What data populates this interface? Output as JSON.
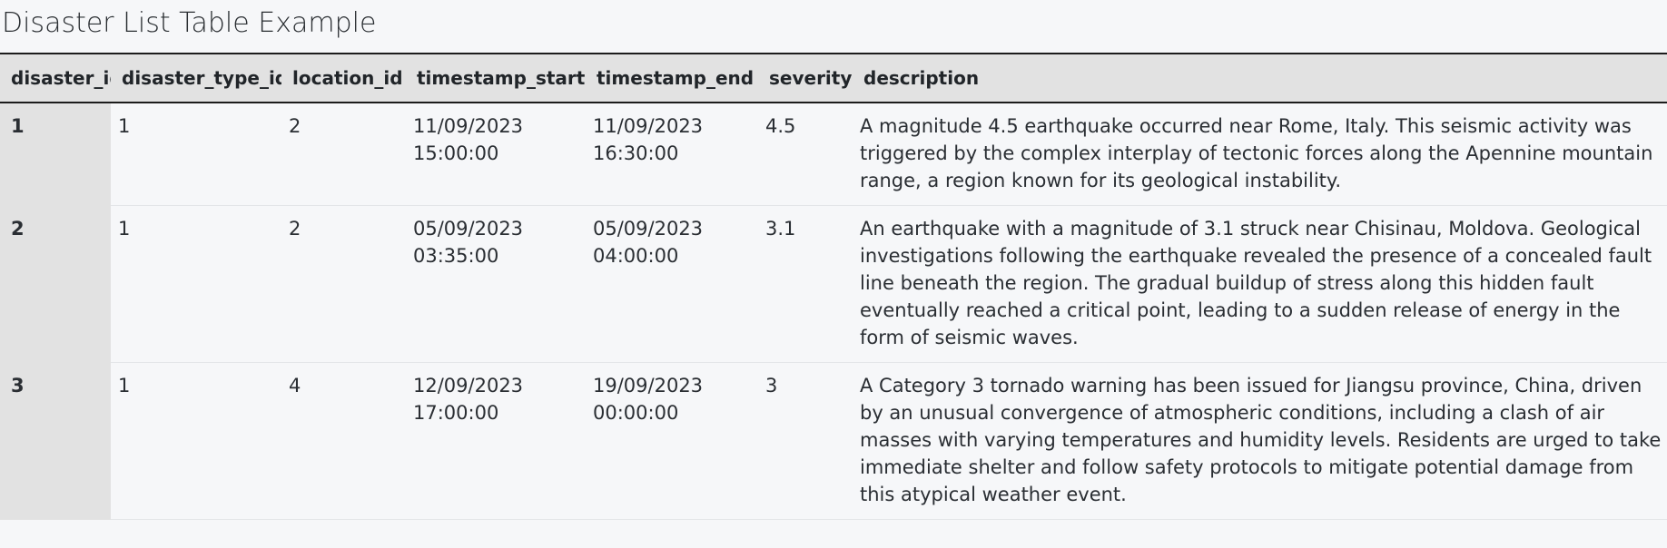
{
  "title": "Disaster List Table Example",
  "table": {
    "columns": [
      "disaster_id",
      "disaster_type_id",
      "location_id",
      "timestamp_start",
      "timestamp_end",
      "severity",
      "description"
    ],
    "rows": [
      {
        "disaster_id": "1",
        "disaster_type_id": "1",
        "location_id": "2",
        "timestamp_start": "11/09/2023 15:00:00",
        "timestamp_end": "11/09/2023 16:30:00",
        "severity": "4.5",
        "description": "A magnitude 4.5 earthquake occurred near Rome, Italy. This seismic activity was triggered by the complex interplay of tectonic forces along the Apennine mountain range, a region known for its geological instability."
      },
      {
        "disaster_id": "2",
        "disaster_type_id": "1",
        "location_id": "2",
        "timestamp_start": "05/09/2023 03:35:00",
        "timestamp_end": "05/09/2023 04:00:00",
        "severity": "3.1",
        "description": "An earthquake with a magnitude of 3.1 struck near Chisinau, Moldova. Geological investigations following the earthquake revealed the presence of a concealed fault line beneath the region. The gradual buildup of stress along this hidden fault eventually reached a critical point, leading to a sudden release of energy in the form of seismic waves."
      },
      {
        "disaster_id": "3",
        "disaster_type_id": "1",
        "location_id": "4",
        "timestamp_start": "12/09/2023 17:00:00",
        "timestamp_end": "19/09/2023 00:00:00",
        "severity": "3",
        "description": "A Category 3 tornado warning has been issued for Jiangsu province, China, driven by an unusual convergence of atmospheric conditions, including a clash of air masses with varying temperatures and humidity levels. Residents are urged to take immediate shelter and follow safety protocols to mitigate potential damage from this atypical weather event."
      }
    ]
  }
}
